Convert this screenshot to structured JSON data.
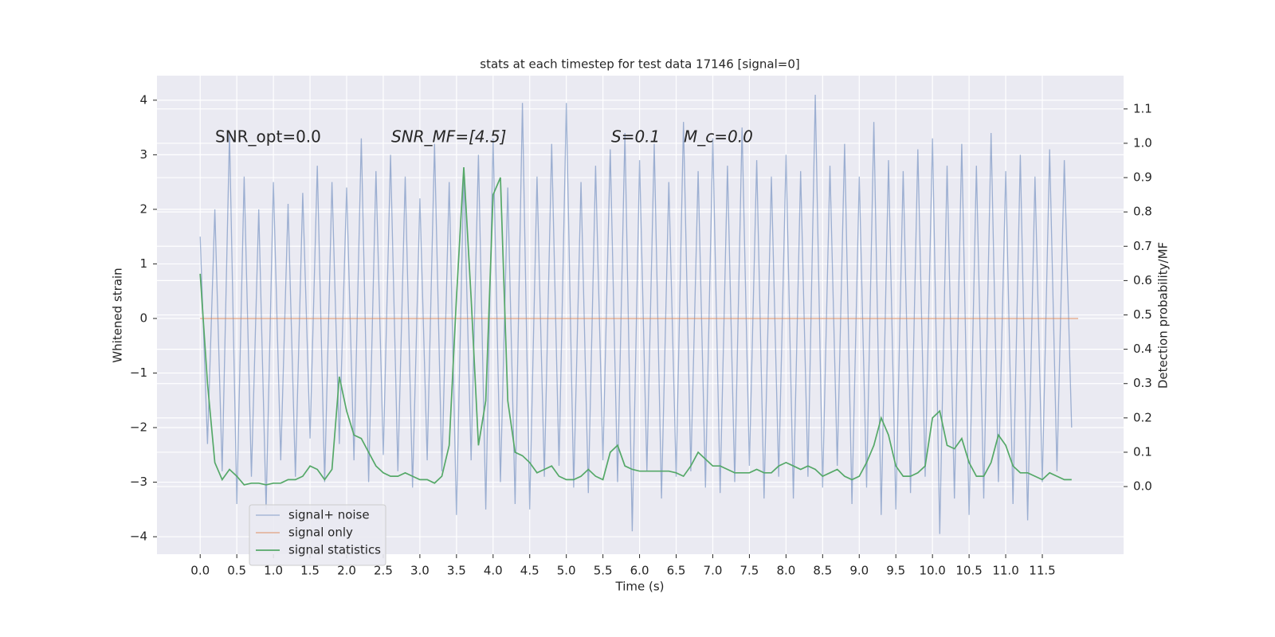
{
  "chart_data": {
    "type": "line",
    "title": "stats at each timestep for test data 17146 [signal=0]",
    "xlabel": "Time (s)",
    "ylabel": "Whitened strain",
    "y2label": "Detection probability/MF",
    "annotations": [
      "SNR_opt=0.0",
      "SNR_MF=[4.5]",
      "S=0.1",
      "M_c=0.0"
    ],
    "xlim": [
      -0.59,
      12.61
    ],
    "ylim": [
      -4.32,
      4.45
    ],
    "y2lim": [
      -0.197,
      1.197
    ],
    "xticks": [
      {
        "value": 0,
        "label": "0.0"
      },
      0.5,
      {
        "value": 1,
        "label": "1.0"
      },
      1.5,
      {
        "value": 2,
        "label": "2.0"
      },
      2.5,
      {
        "value": 3,
        "label": "3.0"
      },
      3.5,
      {
        "value": 4,
        "label": "4.0"
      },
      4.5,
      {
        "value": 5,
        "label": "5.0"
      },
      5.5,
      {
        "value": 6,
        "label": "6.0"
      },
      6.5,
      {
        "value": 7,
        "label": "7.0"
      },
      7.5,
      {
        "value": 8,
        "label": "8.0"
      },
      8.5,
      {
        "value": 9,
        "label": "9.0"
      },
      9.5,
      {
        "value": 10,
        "label": "10.0"
      },
      10.5,
      {
        "value": 11,
        "label": "11.0"
      },
      11.5
    ],
    "yticks": [
      {
        "value": -4,
        "label": "−4"
      },
      {
        "value": -3,
        "label": "−3"
      },
      {
        "value": -2,
        "label": "−2"
      },
      {
        "value": -1,
        "label": "−1"
      },
      0,
      1,
      2,
      3,
      4
    ],
    "y2ticks": [
      {
        "value": 0,
        "label": "0.0"
      },
      0.1,
      0.2,
      0.3,
      0.4,
      0.5,
      0.6,
      0.7,
      0.8,
      0.9,
      {
        "value": 1,
        "label": "1.0"
      },
      1.1
    ],
    "grid": true,
    "legend": "lower left",
    "x": [
      0,
      0.1,
      0.2,
      0.3,
      0.4,
      0.5,
      0.6,
      0.7,
      0.8,
      0.9,
      1,
      1.1,
      1.2,
      1.3,
      1.4,
      1.5,
      1.6,
      1.7,
      1.8,
      1.9,
      2,
      2.1,
      2.2,
      2.3,
      2.4,
      2.5,
      2.6,
      2.7,
      2.8,
      2.9,
      3,
      3.1,
      3.2,
      3.3,
      3.4,
      3.5,
      3.6,
      3.7,
      3.8,
      3.9,
      4,
      4.1,
      4.2,
      4.3,
      4.4,
      4.5,
      4.6,
      4.7,
      4.8,
      4.9,
      5,
      5.1,
      5.2,
      5.3,
      5.4,
      5.5,
      5.6,
      5.7,
      5.8,
      5.9,
      6,
      6.1,
      6.2,
      6.3,
      6.4,
      6.5,
      6.6,
      6.7,
      6.8,
      6.9,
      7,
      7.1,
      7.2,
      7.3,
      7.4,
      7.5,
      7.6,
      7.7,
      7.8,
      7.9,
      8,
      8.1,
      8.2,
      8.3,
      8.4,
      8.5,
      8.6,
      8.7,
      8.8,
      8.9,
      9,
      9.1,
      9.2,
      9.3,
      9.4,
      9.5,
      9.6,
      9.7,
      9.8,
      9.9,
      10,
      10.1,
      10.2,
      10.3,
      10.4,
      10.5,
      10.6,
      10.7,
      10.8,
      10.9,
      11,
      11.1,
      11.2,
      11.3,
      11.4,
      11.5,
      11.6,
      11.7,
      11.8,
      11.9
    ],
    "series": [
      {
        "name": "signal+ noise",
        "color": "#4c72b0",
        "values": [
          1.5,
          -2.3,
          2.0,
          -2.8,
          3.4,
          -3.4,
          2.6,
          -2.9,
          2.0,
          -3.5,
          2.5,
          -2.6,
          2.1,
          -2.9,
          2.3,
          -2.2,
          2.8,
          -3.0,
          2.5,
          -2.3,
          2.4,
          -2.6,
          3.3,
          -3.0,
          2.7,
          -2.5,
          3.0,
          -2.8,
          2.6,
          -3.1,
          2.2,
          -2.6,
          3.2,
          -2.8,
          2.5,
          -3.6,
          2.7,
          -2.6,
          3.0,
          -3.5,
          3.3,
          -3.0,
          2.4,
          -3.4,
          3.95,
          -3.5,
          2.6,
          -2.9,
          3.2,
          -2.7,
          3.95,
          -3.1,
          2.5,
          -3.2,
          2.8,
          -2.6,
          3.1,
          -3.0,
          3.4,
          -3.9,
          2.9,
          -2.8,
          3.2,
          -3.3,
          2.5,
          -2.9,
          3.6,
          -2.8,
          2.7,
          -3.1,
          3.3,
          -3.2,
          2.8,
          -3.0,
          3.5,
          -2.7,
          2.9,
          -3.3,
          2.6,
          -2.9,
          3.0,
          -3.3,
          2.7,
          -2.9,
          4.1,
          -3.1,
          2.8,
          -2.7,
          3.2,
          -3.4,
          2.6,
          -3.1,
          3.6,
          -3.6,
          2.9,
          -3.5,
          2.7,
          -3.2,
          3.1,
          -2.9,
          3.3,
          -3.95,
          2.8,
          -3.3,
          3.2,
          -3.6,
          2.8,
          -3.3,
          3.4,
          -3.0,
          2.7,
          -3.4,
          3.0,
          -3.7,
          2.6,
          -3.0,
          3.1,
          -2.8,
          2.9,
          -2.0
        ]
      },
      {
        "name": "signal only",
        "color": "#dd8452",
        "x": [
          0,
          11.99
        ],
        "values": [
          0,
          0
        ]
      },
      {
        "name": "signal statistics",
        "color": "#55a868",
        "axis": "y2",
        "values": [
          0.62,
          0.3,
          0.07,
          0.02,
          0.05,
          0.03,
          0.005,
          0.01,
          0.01,
          0.005,
          0.01,
          0.01,
          0.02,
          0.02,
          0.03,
          0.06,
          0.05,
          0.02,
          0.05,
          0.32,
          0.22,
          0.15,
          0.14,
          0.1,
          0.06,
          0.04,
          0.03,
          0.03,
          0.04,
          0.03,
          0.02,
          0.02,
          0.01,
          0.03,
          0.12,
          0.55,
          0.93,
          0.55,
          0.12,
          0.25,
          0.85,
          0.9,
          0.25,
          0.1,
          0.09,
          0.07,
          0.04,
          0.05,
          0.06,
          0.03,
          0.02,
          0.02,
          0.03,
          0.05,
          0.03,
          0.02,
          0.1,
          0.12,
          0.06,
          0.05,
          0.045,
          0.045,
          0.045,
          0.045,
          0.045,
          0.04,
          0.03,
          0.06,
          0.1,
          0.08,
          0.06,
          0.06,
          0.05,
          0.04,
          0.04,
          0.04,
          0.05,
          0.04,
          0.04,
          0.06,
          0.07,
          0.06,
          0.05,
          0.06,
          0.05,
          0.03,
          0.04,
          0.05,
          0.03,
          0.02,
          0.03,
          0.07,
          0.12,
          0.2,
          0.15,
          0.06,
          0.03,
          0.03,
          0.04,
          0.06,
          0.2,
          0.22,
          0.12,
          0.11,
          0.14,
          0.07,
          0.03,
          0.03,
          0.07,
          0.15,
          0.12,
          0.06,
          0.04,
          0.04,
          0.03,
          0.02,
          0.04,
          0.03,
          0.02,
          0.02
        ]
      }
    ]
  }
}
